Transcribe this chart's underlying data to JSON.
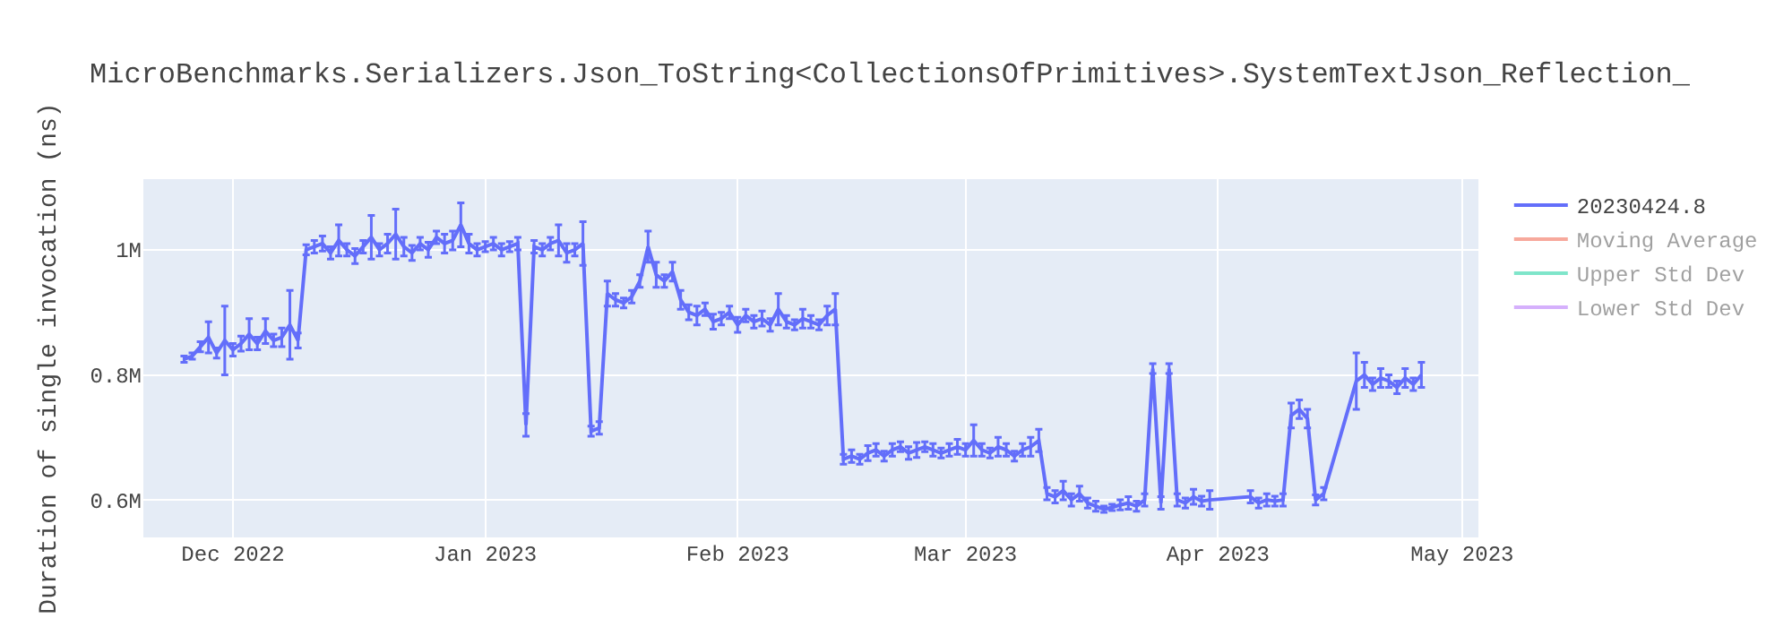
{
  "chart_data": {
    "type": "line",
    "title": "MicroBenchmarks.Serializers.Json_ToString<CollectionsOfPrimitives>.SystemTextJson_Reflection_",
    "ylabel": "Duration of single invocation (ns)",
    "xlim": [
      "2022-11-20",
      "2023-05-03"
    ],
    "xticks": [
      {
        "value": "2022-12-01",
        "label": "Dec 2022"
      },
      {
        "value": "2023-01-01",
        "label": "Jan 2023"
      },
      {
        "value": "2023-02-01",
        "label": "Feb 2023"
      },
      {
        "value": "2023-03-01",
        "label": "Mar 2023"
      },
      {
        "value": "2023-04-01",
        "label": "Apr 2023"
      },
      {
        "value": "2023-05-01",
        "label": "May 2023"
      }
    ],
    "ylim": [
      540000,
      1113000
    ],
    "yticks": [
      {
        "value": 600000,
        "label": "0.6M"
      },
      {
        "value": 800000,
        "label": "0.8M"
      },
      {
        "value": 1000000,
        "label": "1M"
      }
    ],
    "grid": true,
    "legend": "top right",
    "line_style": "solid",
    "series": [
      {
        "name": "20230424.8",
        "color": "#636efa",
        "x": [
          "2022-11-25",
          "2022-11-26",
          "2022-11-27",
          "2022-11-28",
          "2022-11-29",
          "2022-11-30",
          "2022-12-01",
          "2022-12-02",
          "2022-12-03",
          "2022-12-04",
          "2022-12-05",
          "2022-12-06",
          "2022-12-07",
          "2022-12-08",
          "2022-12-09",
          "2022-12-10",
          "2022-12-11",
          "2022-12-12",
          "2022-12-13",
          "2022-12-14",
          "2022-12-15",
          "2022-12-16",
          "2022-12-17",
          "2022-12-18",
          "2022-12-19",
          "2022-12-20",
          "2022-12-21",
          "2022-12-22",
          "2022-12-23",
          "2022-12-24",
          "2022-12-25",
          "2022-12-26",
          "2022-12-27",
          "2022-12-28",
          "2022-12-29",
          "2022-12-30",
          "2022-12-31",
          "2023-01-01",
          "2023-01-02",
          "2023-01-03",
          "2023-01-04",
          "2023-01-05",
          "2023-01-06",
          "2023-01-07",
          "2023-01-08",
          "2023-01-09",
          "2023-01-10",
          "2023-01-11",
          "2023-01-12",
          "2023-01-13",
          "2023-01-14",
          "2023-01-15",
          "2023-01-16",
          "2023-01-17",
          "2023-01-18",
          "2023-01-19",
          "2023-01-20",
          "2023-01-21",
          "2023-01-22",
          "2023-01-23",
          "2023-01-24",
          "2023-01-25",
          "2023-01-26",
          "2023-01-27",
          "2023-01-28",
          "2023-01-29",
          "2023-01-30",
          "2023-01-31",
          "2023-02-01",
          "2023-02-02",
          "2023-02-03",
          "2023-02-04",
          "2023-02-05",
          "2023-02-06",
          "2023-02-07",
          "2023-02-08",
          "2023-02-09",
          "2023-02-10",
          "2023-02-11",
          "2023-02-12",
          "2023-02-13",
          "2023-02-14",
          "2023-02-15",
          "2023-02-16",
          "2023-02-17",
          "2023-02-18",
          "2023-02-19",
          "2023-02-20",
          "2023-02-21",
          "2023-02-22",
          "2023-02-23",
          "2023-02-24",
          "2023-02-25",
          "2023-02-26",
          "2023-02-27",
          "2023-02-28",
          "2023-03-01",
          "2023-03-02",
          "2023-03-03",
          "2023-03-04",
          "2023-03-05",
          "2023-03-06",
          "2023-03-07",
          "2023-03-08",
          "2023-03-09",
          "2023-03-10",
          "2023-03-11",
          "2023-03-12",
          "2023-03-13",
          "2023-03-14",
          "2023-03-15",
          "2023-03-16",
          "2023-03-17",
          "2023-03-18",
          "2023-03-19",
          "2023-03-20",
          "2023-03-21",
          "2023-03-22",
          "2023-03-23",
          "2023-03-24",
          "2023-03-25",
          "2023-03-26",
          "2023-03-27",
          "2023-03-28",
          "2023-03-29",
          "2023-03-30",
          "2023-03-31",
          "2023-04-05",
          "2023-04-06",
          "2023-04-07",
          "2023-04-08",
          "2023-04-09",
          "2023-04-10",
          "2023-04-11",
          "2023-04-12",
          "2023-04-13",
          "2023-04-14",
          "2023-04-18",
          "2023-04-19",
          "2023-04-20",
          "2023-04-21",
          "2023-04-22",
          "2023-04-23",
          "2023-04-24",
          "2023-04-25",
          "2023-04-26"
        ],
        "values": [
          825000,
          830000,
          845000,
          860000,
          835000,
          855000,
          840000,
          850000,
          865000,
          850000,
          870000,
          855000,
          860000,
          880000,
          855000,
          1000000,
          1005000,
          1010000,
          995000,
          1015000,
          1000000,
          990000,
          1005000,
          1020000,
          1000000,
          1010000,
          1025000,
          1005000,
          995000,
          1010000,
          1000000,
          1020000,
          1010000,
          1015000,
          1040000,
          1010000,
          1000000,
          1005000,
          1010000,
          1000000,
          1005000,
          1010000,
          720000,
          1005000,
          1000000,
          1010000,
          1015000,
          995000,
          1000000,
          1010000,
          710000,
          715000,
          930000,
          920000,
          915000,
          925000,
          950000,
          1005000,
          960000,
          950000,
          965000,
          920000,
          900000,
          895000,
          905000,
          885000,
          890000,
          900000,
          880000,
          895000,
          885000,
          890000,
          880000,
          905000,
          885000,
          880000,
          890000,
          885000,
          880000,
          895000,
          905000,
          665000,
          670000,
          665000,
          675000,
          680000,
          670000,
          680000,
          685000,
          675000,
          680000,
          685000,
          680000,
          675000,
          680000,
          685000,
          680000,
          695000,
          680000,
          675000,
          685000,
          680000,
          670000,
          680000,
          685000,
          695000,
          610000,
          605000,
          615000,
          600000,
          610000,
          595000,
          590000,
          585000,
          588000,
          592000,
          595000,
          590000,
          600000,
          810000,
          595000,
          810000,
          600000,
          595000,
          605000,
          598000,
          600000,
          605000,
          595000,
          600000,
          598000,
          600000,
          735000,
          745000,
          730000,
          600000,
          610000,
          790000,
          800000,
          785000,
          795000,
          790000,
          780000,
          795000,
          785000,
          800000
        ],
        "errors": [
          5000,
          5000,
          8000,
          25000,
          8000,
          55000,
          10000,
          12000,
          25000,
          10000,
          20000,
          10000,
          15000,
          55000,
          12000,
          8000,
          10000,
          12000,
          10000,
          25000,
          10000,
          12000,
          10000,
          35000,
          10000,
          15000,
          40000,
          15000,
          12000,
          10000,
          12000,
          10000,
          15000,
          15000,
          35000,
          15000,
          10000,
          8000,
          10000,
          10000,
          8000,
          10000,
          18000,
          10000,
          10000,
          10000,
          25000,
          15000,
          10000,
          35000,
          8000,
          10000,
          20000,
          10000,
          8000,
          10000,
          10000,
          25000,
          20000,
          10000,
          15000,
          15000,
          12000,
          15000,
          10000,
          12000,
          10000,
          10000,
          12000,
          10000,
          10000,
          12000,
          10000,
          25000,
          10000,
          8000,
          15000,
          10000,
          8000,
          15000,
          25000,
          8000,
          10000,
          8000,
          12000,
          10000,
          8000,
          10000,
          8000,
          10000,
          12000,
          8000,
          10000,
          8000,
          10000,
          12000,
          10000,
          25000,
          10000,
          8000,
          15000,
          10000,
          8000,
          10000,
          15000,
          18000,
          10000,
          10000,
          15000,
          10000,
          12000,
          8000,
          8000,
          5000,
          5000,
          8000,
          10000,
          8000,
          10000,
          8000,
          10000,
          8000,
          10000,
          8000,
          12000,
          8000,
          15000,
          10000,
          8000,
          10000,
          8000,
          10000,
          20000,
          15000,
          15000,
          8000,
          10000,
          45000,
          20000,
          10000,
          15000,
          10000,
          10000,
          15000,
          10000,
          20000
        ]
      },
      {
        "name": "Moving Average",
        "color": "#ef553b"
      },
      {
        "name": "Upper Std Dev",
        "color": "#00cc96"
      },
      {
        "name": "Lower Std Dev",
        "color": "#ab63fa"
      }
    ]
  }
}
